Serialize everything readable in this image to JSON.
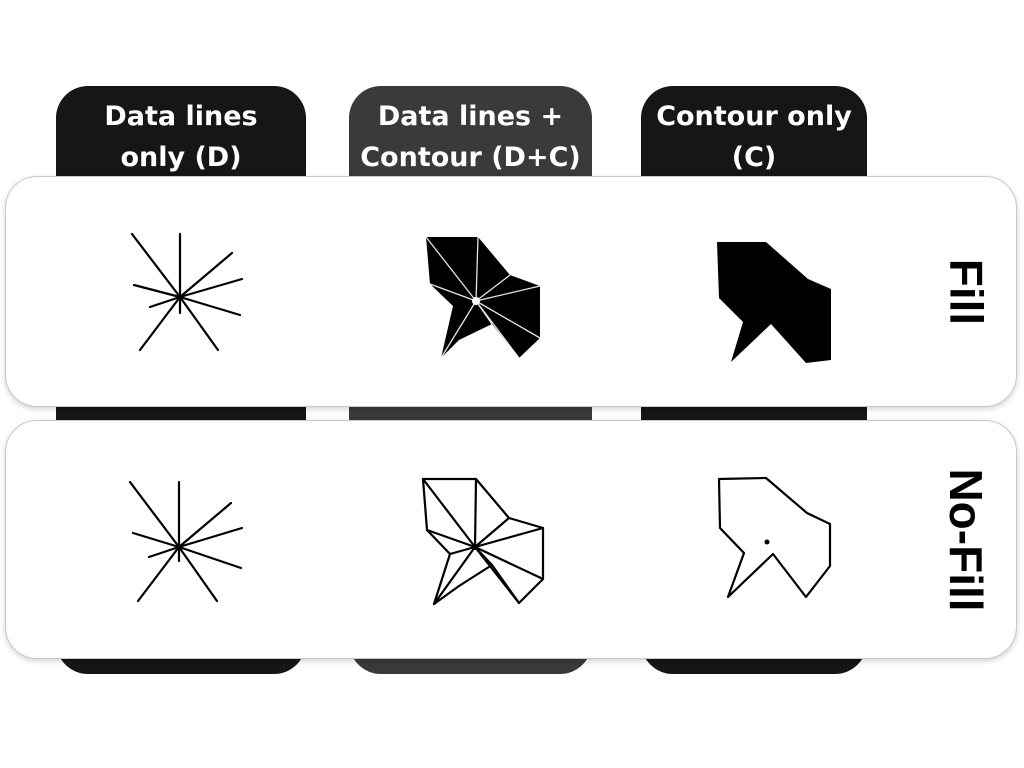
{
  "columns": [
    {
      "label": "Data lines\nonly (D)"
    },
    {
      "label": "Data lines +\nContour (D+C)"
    },
    {
      "label": "Contour only\n(C)"
    }
  ],
  "rows": [
    {
      "label": "Fill"
    },
    {
      "label": "No-Fill"
    }
  ],
  "colors": {
    "tab_dark": "#161616",
    "tab_mid": "#3a3a3a",
    "glyph": "#000000"
  }
}
